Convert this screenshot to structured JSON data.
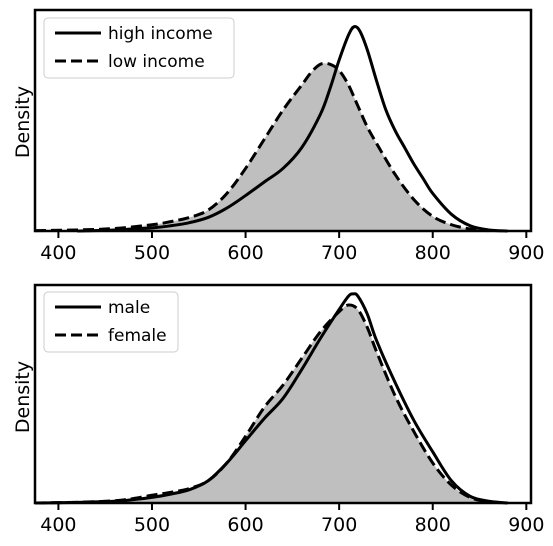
{
  "chart_data": [
    {
      "type": "area",
      "ylabel": "Density",
      "xlim": [
        375,
        905
      ],
      "ylim": [
        0,
        1.06
      ],
      "xticks": [
        "400",
        "500",
        "600",
        "700",
        "800",
        "900"
      ],
      "legend_position": "top-left",
      "grid": false,
      "series": [
        {
          "name": "high income",
          "style": "solid",
          "filled": false,
          "x": [
            420,
            460,
            500,
            520,
            540,
            560,
            580,
            600,
            620,
            640,
            660,
            680,
            690,
            700,
            710,
            716,
            722,
            730,
            740,
            750,
            760,
            770,
            780,
            790,
            800,
            820,
            840,
            860,
            880
          ],
          "y": [
            0,
            0.005,
            0.015,
            0.025,
            0.04,
            0.065,
            0.11,
            0.17,
            0.235,
            0.3,
            0.4,
            0.56,
            0.68,
            0.82,
            0.94,
            0.98,
            0.96,
            0.87,
            0.72,
            0.58,
            0.48,
            0.4,
            0.32,
            0.25,
            0.18,
            0.08,
            0.025,
            0.005,
            0
          ]
        },
        {
          "name": "low income",
          "style": "dashed",
          "filled": true,
          "x": [
            375,
            420,
            460,
            500,
            520,
            540,
            560,
            580,
            600,
            620,
            640,
            660,
            670,
            680,
            690,
            700,
            710,
            720,
            730,
            740,
            760,
            780,
            800,
            820,
            840,
            860
          ],
          "y": [
            0.002,
            0.005,
            0.012,
            0.03,
            0.045,
            0.065,
            0.1,
            0.18,
            0.3,
            0.44,
            0.58,
            0.7,
            0.76,
            0.8,
            0.8,
            0.77,
            0.7,
            0.6,
            0.5,
            0.42,
            0.27,
            0.15,
            0.07,
            0.03,
            0.01,
            0.002
          ]
        }
      ]
    },
    {
      "type": "area",
      "ylabel": "Density",
      "xlim": [
        375,
        905
      ],
      "ylim": [
        0,
        0.98
      ],
      "xticks": [
        "400",
        "500",
        "600",
        "700",
        "800",
        "900"
      ],
      "legend_position": "top-left",
      "grid": false,
      "series": [
        {
          "name": "male",
          "style": "solid",
          "filled": false,
          "x": [
            380,
            420,
            460,
            480,
            500,
            520,
            540,
            560,
            580,
            600,
            620,
            640,
            660,
            680,
            700,
            710,
            715,
            720,
            730,
            740,
            760,
            780,
            800,
            820,
            840,
            860,
            880
          ],
          "y": [
            0,
            0.003,
            0.008,
            0.015,
            0.025,
            0.04,
            0.06,
            0.1,
            0.18,
            0.28,
            0.38,
            0.47,
            0.6,
            0.74,
            0.87,
            0.93,
            0.94,
            0.93,
            0.85,
            0.73,
            0.54,
            0.37,
            0.23,
            0.1,
            0.03,
            0.008,
            0
          ]
        },
        {
          "name": "female",
          "style": "dashed",
          "filled": true,
          "x": [
            375,
            420,
            460,
            480,
            500,
            520,
            540,
            560,
            580,
            600,
            620,
            640,
            660,
            680,
            700,
            710,
            720,
            730,
            740,
            760,
            780,
            800,
            820,
            840,
            860,
            880
          ],
          "y": [
            0,
            0.003,
            0.01,
            0.02,
            0.035,
            0.048,
            0.065,
            0.1,
            0.18,
            0.3,
            0.43,
            0.53,
            0.65,
            0.77,
            0.86,
            0.89,
            0.87,
            0.79,
            0.68,
            0.48,
            0.32,
            0.18,
            0.08,
            0.025,
            0.006,
            0
          ]
        }
      ]
    }
  ]
}
